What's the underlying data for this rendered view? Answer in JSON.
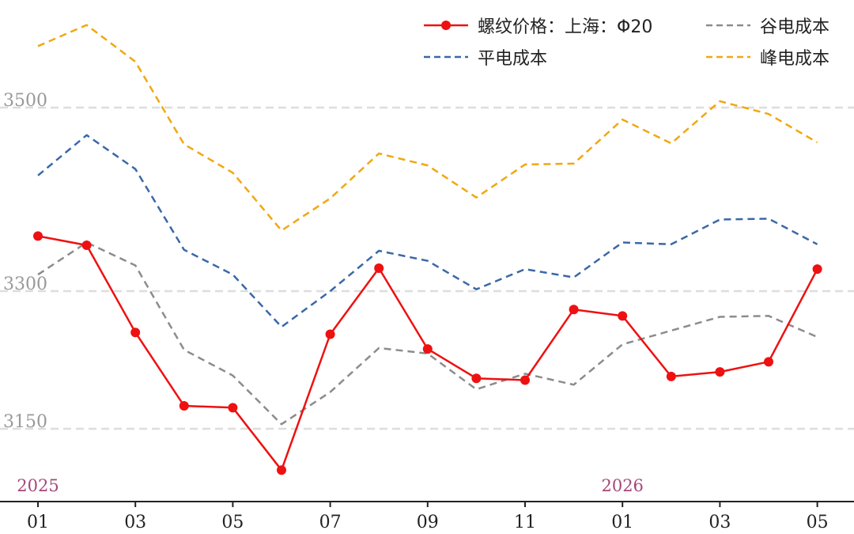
{
  "chart_data": {
    "type": "line",
    "x": [
      "2025-01",
      "2025-02",
      "2025-03",
      "2025-04",
      "2025-05",
      "2025-06",
      "2025-07",
      "2025-08",
      "2025-09",
      "2025-10",
      "2025-11",
      "2025-12",
      "2026-01",
      "2026-02",
      "2026-03",
      "2026-04",
      "2026-05"
    ],
    "x_tick_labels": [
      "01",
      "03",
      "05",
      "07",
      "09",
      "11",
      "01",
      "03",
      "05"
    ],
    "year_labels": [
      "2025",
      "2026"
    ],
    "y_ticks": [
      3150,
      3300,
      3500
    ],
    "ylim": [
      3095,
      3560
    ],
    "grid": "horizontal dashed",
    "legend": "top-right",
    "series": [
      {
        "name": "螺纹价格：上海：Φ20",
        "color": "#ee1111",
        "style": "solid-markers",
        "values": [
          3360,
          3350,
          3255,
          3175,
          3173,
          3105,
          3253,
          3325,
          3237,
          3205,
          3203,
          3280,
          3273,
          3207,
          3212,
          3223,
          3324
        ]
      },
      {
        "name": "谷电成本",
        "color": "#8c8c8c",
        "style": "dashed",
        "values": [
          3318,
          3353,
          3328,
          3236,
          3208,
          3155,
          3190,
          3238,
          3232,
          3193,
          3210,
          3198,
          3242,
          3257,
          3272,
          3273,
          3250
        ]
      },
      {
        "name": "平电成本",
        "color": "#3a68a8",
        "style": "dashed",
        "values": [
          3426,
          3470,
          3433,
          3345,
          3318,
          3261,
          3300,
          3344,
          3333,
          3302,
          3324,
          3315,
          3353,
          3351,
          3378,
          3379,
          3351
        ]
      },
      {
        "name": "峰电成本",
        "color": "#f0a812",
        "style": "dashed",
        "values": [
          3567,
          3590,
          3550,
          3460,
          3429,
          3366,
          3401,
          3450,
          3437,
          3402,
          3438,
          3439,
          3487,
          3461,
          3507,
          3493,
          3462
        ]
      }
    ]
  },
  "colors": {
    "year_label": "#a4487a",
    "tick_label": "#999999",
    "axis": "#222222",
    "grid": "#dddddd"
  }
}
